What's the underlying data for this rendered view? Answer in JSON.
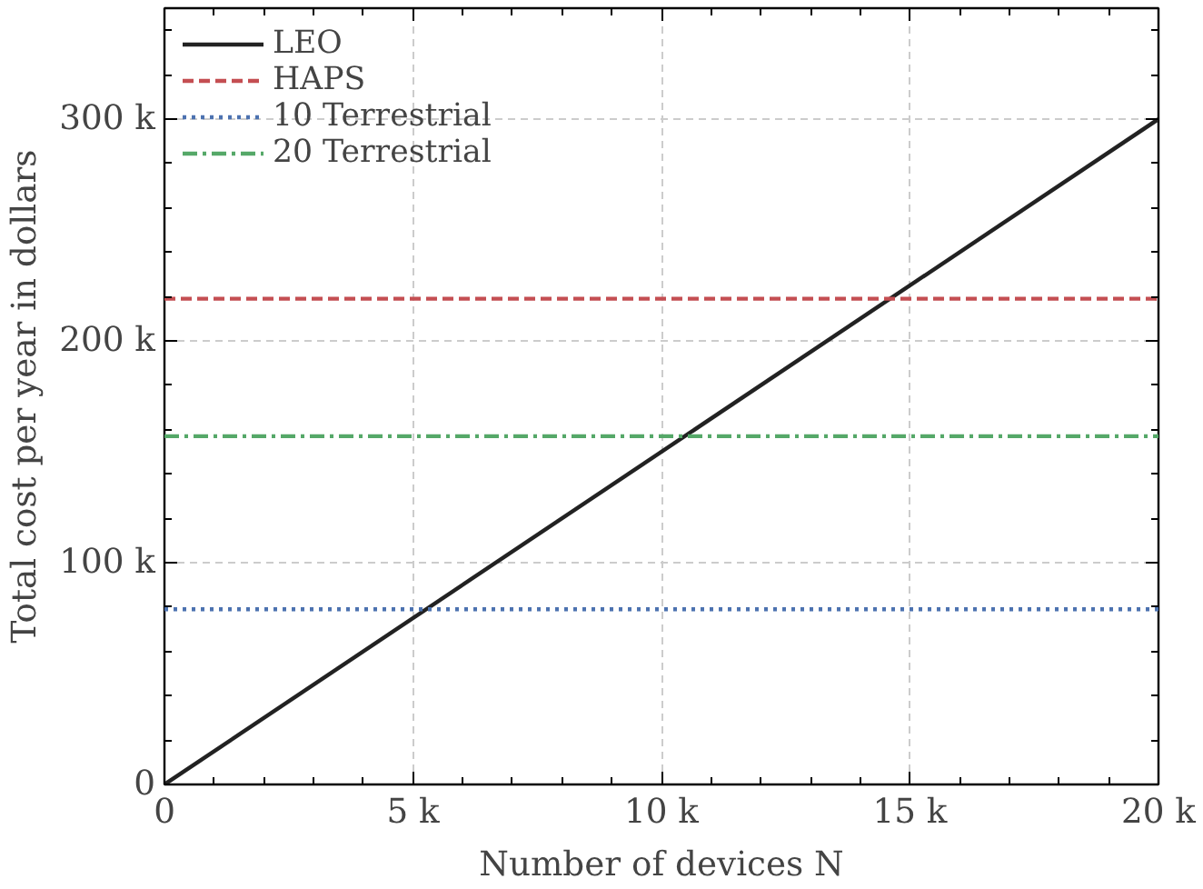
{
  "chart_data": {
    "type": "line",
    "xlabel": "Number of devices N",
    "ylabel": "Total cost per year in dollars",
    "x": [
      0,
      20000
    ],
    "series": [
      {
        "name": "LEO",
        "color": "#222222",
        "values": [
          0,
          300000
        ],
        "line_style": "solid"
      },
      {
        "name": "HAPS",
        "color": "#c44e52",
        "values": [
          219000,
          219000
        ],
        "line_style": "dashed"
      },
      {
        "name": "10 Terrestrial",
        "color": "#4c72b0",
        "values": [
          79000,
          79000
        ],
        "line_style": "dotted"
      },
      {
        "name": "20 Terrestrial",
        "color": "#55a868",
        "values": [
          157000,
          157000
        ],
        "line_style": "dashdot"
      }
    ],
    "xlim": [
      0,
      20000
    ],
    "ylim": [
      0,
      350000
    ],
    "xticks": [
      0,
      {
        "value": 5000,
        "label": "5 k"
      },
      {
        "value": 10000,
        "label": "10 k"
      },
      {
        "value": 15000,
        "label": "15 k"
      },
      {
        "value": 20000,
        "label": "20 k"
      }
    ],
    "yticks": [
      0,
      {
        "value": 100000,
        "label": "100 k"
      },
      {
        "value": 200000,
        "label": "200 k"
      },
      {
        "value": 300000,
        "label": "300 k"
      }
    ],
    "grid": true,
    "legend": "top left",
    "marker": "none"
  }
}
